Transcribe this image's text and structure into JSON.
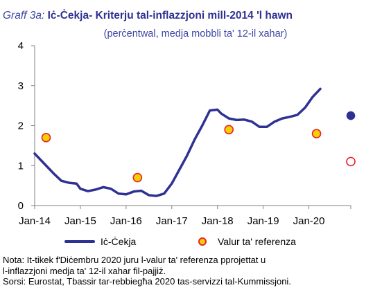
{
  "title": {
    "prefix": "Graff 3a:",
    "main": "Iċ-Ċekja- Kriterju tal-inflazzjoni mill-2014 'l hawn"
  },
  "subtitle": "(perċentwal, medja mobbli ta' 12-il xahar)",
  "legend": {
    "series_label": "Iċ-Ċekja",
    "reference_label": "Valur ta' referenza"
  },
  "notes": [
    "Nota: It-tikek f'Diċembru 2020 juru l-valur ta' referenza pprojettat u",
    "l-inflazzjoni medja ta'  12-il xahar fil-pajjiż.",
    "Sorsi: Eurostat, Tbassir tar-rebbiegħa 2020 tas-servizzi tal-Kummissjoni."
  ],
  "colors": {
    "series": "#2e3192",
    "reference_fill": "#f5d000",
    "reference_border": "#e8212a",
    "axis": "#808080"
  },
  "chart_data": {
    "type": "line",
    "xlabel": "",
    "ylabel": "",
    "ylim": [
      0,
      4
    ],
    "yticks": [
      "0",
      "1",
      "2",
      "3",
      "4"
    ],
    "xticks": [
      {
        "label": "Jan-14",
        "date": "2014-01"
      },
      {
        "label": "Jan-15",
        "date": "2015-01"
      },
      {
        "label": "Jan-16",
        "date": "2016-01"
      },
      {
        "label": "Jan-17",
        "date": "2017-01"
      },
      {
        "label": "Jan-18",
        "date": "2018-01"
      },
      {
        "label": "Jan-19",
        "date": "2019-01"
      },
      {
        "label": "Jan-20",
        "date": "2020-01"
      }
    ],
    "x_range": [
      "2014-01",
      "2020-12"
    ],
    "grid": false,
    "legend_position": "bottom",
    "series": [
      {
        "name": "Iċ-Ċekja",
        "points": [
          {
            "x": "2014-01",
            "y": 1.3
          },
          {
            "x": "2014-03",
            "y": 1.1
          },
          {
            "x": "2014-05",
            "y": 0.9
          },
          {
            "x": "2014-06",
            "y": 0.8
          },
          {
            "x": "2014-08",
            "y": 0.62
          },
          {
            "x": "2014-10",
            "y": 0.57
          },
          {
            "x": "2014-12",
            "y": 0.55
          },
          {
            "x": "2015-01",
            "y": 0.42
          },
          {
            "x": "2015-03",
            "y": 0.36
          },
          {
            "x": "2015-05",
            "y": 0.4
          },
          {
            "x": "2015-07",
            "y": 0.46
          },
          {
            "x": "2015-09",
            "y": 0.42
          },
          {
            "x": "2015-11",
            "y": 0.3
          },
          {
            "x": "2016-01",
            "y": 0.28
          },
          {
            "x": "2016-03",
            "y": 0.35
          },
          {
            "x": "2016-05",
            "y": 0.37
          },
          {
            "x": "2016-07",
            "y": 0.26
          },
          {
            "x": "2016-09",
            "y": 0.24
          },
          {
            "x": "2016-11",
            "y": 0.3
          },
          {
            "x": "2017-01",
            "y": 0.55
          },
          {
            "x": "2017-03",
            "y": 0.9
          },
          {
            "x": "2017-05",
            "y": 1.25
          },
          {
            "x": "2017-07",
            "y": 1.65
          },
          {
            "x": "2017-09",
            "y": 2.0
          },
          {
            "x": "2017-11",
            "y": 2.38
          },
          {
            "x": "2018-01",
            "y": 2.4
          },
          {
            "x": "2018-02",
            "y": 2.3
          },
          {
            "x": "2018-04",
            "y": 2.18
          },
          {
            "x": "2018-06",
            "y": 2.14
          },
          {
            "x": "2018-08",
            "y": 2.15
          },
          {
            "x": "2018-10",
            "y": 2.1
          },
          {
            "x": "2018-12",
            "y": 1.97
          },
          {
            "x": "2019-02",
            "y": 1.97
          },
          {
            "x": "2019-04",
            "y": 2.1
          },
          {
            "x": "2019-06",
            "y": 2.18
          },
          {
            "x": "2019-08",
            "y": 2.22
          },
          {
            "x": "2019-10",
            "y": 2.27
          },
          {
            "x": "2019-12",
            "y": 2.45
          },
          {
            "x": "2020-02",
            "y": 2.72
          },
          {
            "x": "2020-04",
            "y": 2.92
          }
        ]
      },
      {
        "name": "Valur ta' referenza",
        "points": [
          {
            "x": "2014-04",
            "y": 1.7
          },
          {
            "x": "2016-04",
            "y": 0.7
          },
          {
            "x": "2018-04",
            "y": 1.9
          },
          {
            "x": "2020-03",
            "y": 1.8
          }
        ]
      }
    ],
    "projection_points": [
      {
        "series": "Iċ-Ċekja",
        "x": "2020-12",
        "y": 2.25,
        "style": "filled"
      },
      {
        "series": "Valur ta' referenza",
        "x": "2020-12",
        "y": 1.1,
        "style": "hollow"
      }
    ]
  }
}
